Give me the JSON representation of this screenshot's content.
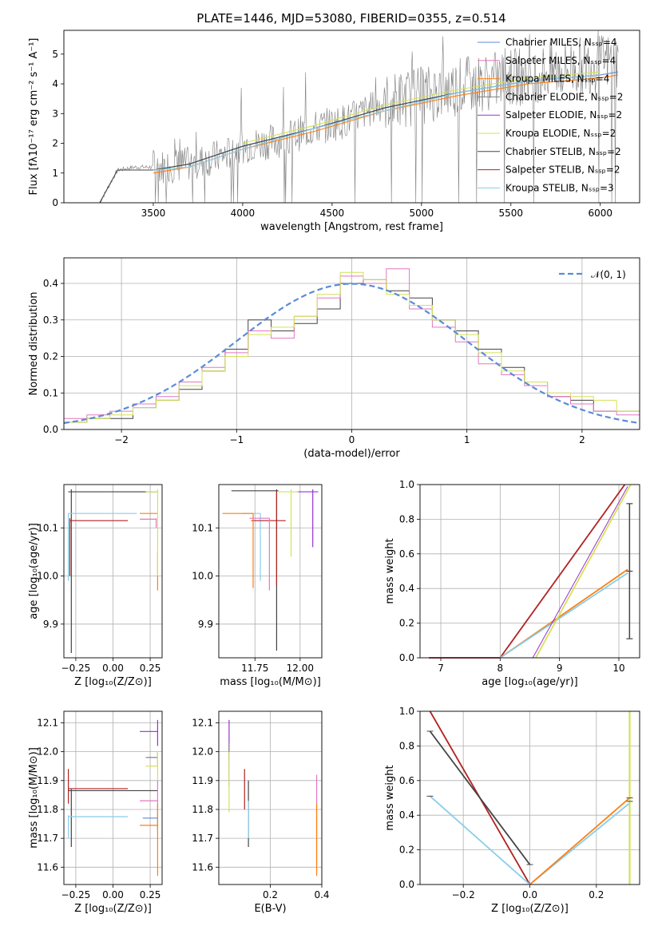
{
  "title": "PLATE=1446, MJD=53080, FIBERID=0355, z=0.514",
  "colors": {
    "chabrier_miles": "#5b8bd8",
    "salpeter_miles": "#e377c2",
    "kroupa_miles": "#ff7f0e",
    "chabrier_elodie": "#7f7f7f",
    "salpeter_elodie": "#9932cc",
    "kroupa_elodie": "#d4e157",
    "chabrier_stelib": "#444444",
    "salpeter_stelib": "#b22222",
    "kroupa_stelib": "#87ceeb",
    "gauss": "#5b8bd8",
    "grid": "#b0b0b0"
  },
  "chart_data": [
    {
      "id": "spectrum",
      "type": "line",
      "xlabel": "wavelength [Angstrom, rest frame]",
      "ylabel": "Flux [fλ10⁻¹⁷ erg cm⁻² s⁻¹ A⁻¹]",
      "xlim": [
        3000,
        6220
      ],
      "ylim": [
        0,
        5.8
      ],
      "xticks": [
        3500,
        4000,
        4500,
        5000,
        5500,
        6000
      ],
      "yticks": [
        0,
        1,
        2,
        3,
        4,
        5
      ],
      "grid": false,
      "legend_position": "top-right",
      "legend": [
        "Chabrier MILES, Nₛₛₚ=4",
        "Salpeter MILES, Nₛₛₚ=4",
        "Kroupa MILES, Nₛₛₚ=4",
        "Chabrier ELODIE, Nₛₛₚ=2",
        "Salpeter ELODIE, Nₛₛₚ=2",
        "Kroupa ELODIE, Nₛₛₚ=2",
        "Chabrier STELIB, Nₛₛₚ=2",
        "Salpeter STELIB, Nₛₛₚ=2",
        "Kroupa STELIB, Nₛₛₚ=3"
      ],
      "data_x": [
        3200,
        3300,
        3400,
        3500,
        3700,
        3900,
        4000,
        4200,
        4400,
        4600,
        4800,
        5000,
        5200,
        5400,
        5600,
        5800,
        6000,
        6100
      ],
      "data_y": [
        0,
        1.1,
        1.2,
        1.2,
        1.3,
        1.6,
        1.9,
        2.1,
        2.5,
        2.8,
        3.4,
        3.6,
        3.9,
        4.1,
        4.3,
        4.5,
        4.7,
        4.8
      ],
      "models": [
        {
          "key": "chabrier_miles",
          "x": [
            3500,
            3700,
            4000,
            4400,
            4800,
            5200,
            5600,
            6000,
            6100
          ],
          "y": [
            1.1,
            1.3,
            1.9,
            2.5,
            3.2,
            3.7,
            4.1,
            4.3,
            4.4
          ]
        },
        {
          "key": "kroupa_miles",
          "x": [
            3500,
            3700,
            4000,
            4400,
            4800,
            5200,
            5600,
            6000,
            6100
          ],
          "y": [
            1.0,
            1.2,
            1.8,
            2.4,
            3.1,
            3.6,
            4.0,
            4.2,
            4.3
          ]
        },
        {
          "key": "kroupa_elodie",
          "x": [
            4000,
            4400,
            4800,
            5200,
            5600,
            6000
          ],
          "y": [
            2.0,
            2.6,
            3.3,
            3.8,
            4.2,
            4.4
          ]
        },
        {
          "key": "chabrier_stelib",
          "x": [
            3200,
            3300,
            3500,
            3700,
            4000,
            4400,
            4800,
            5200,
            5600,
            6000
          ],
          "y": [
            0,
            1.1,
            1.1,
            1.3,
            1.9,
            2.5,
            3.2,
            3.7,
            4.1,
            4.3
          ]
        },
        {
          "key": "kroupa_stelib",
          "x": [
            3500,
            3700,
            4000,
            4400,
            4800,
            5200,
            5600,
            6000
          ],
          "y": [
            1.1,
            1.2,
            1.8,
            2.5,
            3.1,
            3.7,
            4.1,
            4.3
          ]
        }
      ]
    },
    {
      "id": "residuals",
      "type": "line",
      "xlabel": "(data-model)/error",
      "ylabel": "Normed distribution",
      "xlim": [
        -2.5,
        2.5
      ],
      "ylim": [
        0,
        0.47
      ],
      "xticks": [
        -2,
        -1,
        0,
        1,
        2
      ],
      "yticks": [
        0.0,
        0.1,
        0.2,
        0.3,
        0.4
      ],
      "xtick_labels": [
        "−2",
        "−1",
        "0",
        "1",
        "2"
      ],
      "yticks_labels": [
        "0.0",
        "0.1",
        "0.2",
        "0.3",
        "0.4"
      ],
      "grid": true,
      "legend_position": "top-right",
      "legend": [
        "𝒩(0, 1)"
      ],
      "gaussian": {
        "mean": 0,
        "sigma": 1
      },
      "hist_x": [
        -2.5,
        -2.3,
        -2.1,
        -1.9,
        -1.7,
        -1.5,
        -1.3,
        -1.1,
        -0.9,
        -0.7,
        -0.5,
        -0.3,
        -0.1,
        0.1,
        0.3,
        0.5,
        0.7,
        0.9,
        1.1,
        1.3,
        1.5,
        1.7,
        1.9,
        2.1,
        2.3,
        2.5
      ],
      "hist_series": [
        {
          "key": "chabrier_stelib",
          "values": [
            0.02,
            0.03,
            0.03,
            0.06,
            0.08,
            0.11,
            0.16,
            0.22,
            0.3,
            0.27,
            0.29,
            0.33,
            0.4,
            0.41,
            0.38,
            0.36,
            0.3,
            0.27,
            0.22,
            0.17,
            0.13,
            0.09,
            0.08,
            0.05,
            0.05
          ]
        },
        {
          "key": "salpeter_miles",
          "values": [
            0.03,
            0.04,
            0.05,
            0.07,
            0.09,
            0.13,
            0.17,
            0.21,
            0.27,
            0.25,
            0.31,
            0.36,
            0.42,
            0.4,
            0.44,
            0.33,
            0.28,
            0.24,
            0.18,
            0.15,
            0.12,
            0.09,
            0.07,
            0.05,
            0.04
          ]
        },
        {
          "key": "kroupa_elodie",
          "values": [
            0.02,
            0.03,
            0.04,
            0.06,
            0.08,
            0.12,
            0.16,
            0.2,
            0.26,
            0.28,
            0.31,
            0.37,
            0.43,
            0.41,
            0.37,
            0.34,
            0.3,
            0.26,
            0.21,
            0.16,
            0.13,
            0.1,
            0.09,
            0.08,
            0.05
          ]
        }
      ]
    },
    {
      "id": "age_vs_Z",
      "type": "scatter",
      "xlabel": "Z [log₁₀(Z/Z⊙)]",
      "ylabel": "age  [log₁₀(age/yr)]",
      "xlim": [
        -0.33,
        0.33
      ],
      "ylim": [
        9.83,
        10.19
      ],
      "xticks": [
        -0.25,
        0.0,
        0.25
      ],
      "xtick_labels": [
        "−0.25",
        "0.00",
        "0.25"
      ],
      "yticks": [
        9.9,
        10.0,
        10.1
      ],
      "ytick_labels": [
        "9.9",
        "10.0",
        "10.1"
      ],
      "grid": true
    },
    {
      "id": "age_vs_mass",
      "type": "scatter",
      "xlabel": "mass [log₁₀(M/M⊙)]",
      "ylabel": "",
      "xlim": [
        11.55,
        12.12
      ],
      "ylim": [
        9.83,
        10.19
      ],
      "xticks": [
        11.75,
        12.0
      ],
      "xtick_labels": [
        "11.75",
        "12.00"
      ],
      "yticks": [
        9.9,
        10.0,
        10.1
      ],
      "ytick_labels": [
        "9.9",
        "10.0",
        "10.1"
      ],
      "grid": true
    },
    {
      "id": "weight_vs_age",
      "type": "line",
      "xlabel": "age  [log₁₀(age/yr)]",
      "ylabel": "mass weight",
      "xlim": [
        6.65,
        10.35
      ],
      "ylim": [
        0,
        1.0
      ],
      "xticks": [
        7,
        8,
        9,
        10
      ],
      "yticks": [
        0.0,
        0.2,
        0.4,
        0.6,
        0.8,
        1.0
      ],
      "ytick_labels": [
        "0.0",
        "0.2",
        "0.4",
        "0.6",
        "0.8",
        "1.0"
      ],
      "grid": true
    },
    {
      "id": "mass_vs_Z",
      "type": "scatter",
      "xlabel": "Z [log₁₀(Z/Z⊙)]",
      "ylabel": "mass [log₁₀(M/M⊙)]",
      "xlim": [
        -0.33,
        0.33
      ],
      "ylim": [
        11.54,
        12.14
      ],
      "xticks": [
        -0.25,
        0.0,
        0.25
      ],
      "xtick_labels": [
        "−0.25",
        "0.00",
        "0.25"
      ],
      "yticks": [
        11.6,
        11.7,
        11.8,
        11.9,
        12.0,
        12.1
      ],
      "ytick_labels": [
        "11.6",
        "11.7",
        "11.8",
        "11.9",
        "12.0",
        "12.1"
      ],
      "grid": true
    },
    {
      "id": "mass_vs_ebv",
      "type": "scatter",
      "xlabel": "E(B-V)",
      "ylabel": "",
      "xlim": [
        0.0,
        0.4
      ],
      "ylim": [
        11.54,
        12.14
      ],
      "xticks": [
        0.2,
        0.4
      ],
      "xtick_labels": [
        "0.2",
        "0.4"
      ],
      "yticks": [
        11.6,
        11.7,
        11.8,
        11.9,
        12.0,
        12.1
      ],
      "ytick_labels": [
        "11.6",
        "11.7",
        "11.8",
        "11.9",
        "12.0",
        "12.1"
      ],
      "grid": true
    },
    {
      "id": "weight_vs_Z",
      "type": "line",
      "xlabel": "Z [log₁₀(Z/Z⊙)]",
      "ylabel": "mass weight",
      "xlim": [
        -0.33,
        0.33
      ],
      "ylim": [
        0,
        1.0
      ],
      "xticks": [
        -0.2,
        0.0,
        0.2
      ],
      "xtick_labels": [
        "−0.2",
        "0.0",
        "0.2"
      ],
      "yticks": [
        0.0,
        0.2,
        0.4,
        0.6,
        0.8,
        1.0
      ],
      "ytick_labels": [
        "0.0",
        "0.2",
        "0.4",
        "0.6",
        "0.8",
        "1.0"
      ],
      "grid": true
    }
  ]
}
